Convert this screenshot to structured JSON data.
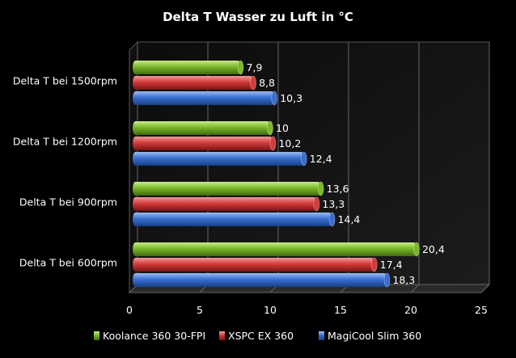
{
  "chart_data": {
    "type": "bar",
    "orientation": "horizontal",
    "title": "Delta T Wasser zu Luft in °C",
    "xlabel": "",
    "ylabel": "",
    "categories": [
      "Delta T bei 1500rpm",
      "Delta T bei 1200rpm",
      "Delta T bei 900rpm",
      "Delta T bei 600rpm"
    ],
    "series": [
      {
        "name": "Koolance 360 30-FPI",
        "color": "#7ab82a",
        "values": [
          7.9,
          10,
          13.6,
          20.4
        ],
        "labels": [
          "7,9",
          "10",
          "13,6",
          "20,4"
        ]
      },
      {
        "name": "XSPC EX 360",
        "color": "#d43b3b",
        "values": [
          8.8,
          10.2,
          13.3,
          17.4
        ],
        "labels": [
          "8,8",
          "10,2",
          "13,3",
          "17,4"
        ]
      },
      {
        "name": "MagiCool Slim 360",
        "color": "#3a6fd0",
        "values": [
          10.3,
          12.4,
          14.4,
          18.3
        ],
        "labels": [
          "10,3",
          "12,4",
          "14,4",
          "18,3"
        ]
      }
    ],
    "xlim": [
      0,
      25
    ],
    "xticks": [
      0,
      5,
      10,
      15,
      20,
      25
    ],
    "grid": true,
    "legend": "bottom"
  }
}
